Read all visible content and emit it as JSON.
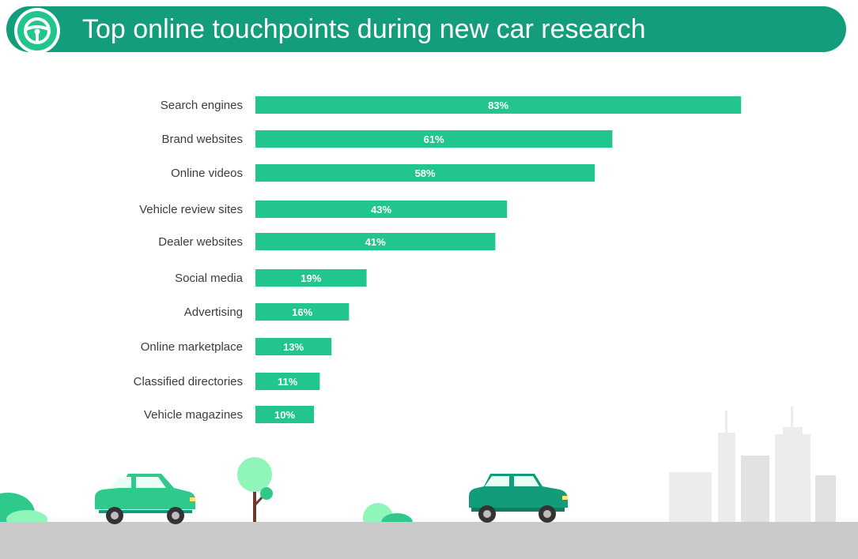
{
  "header": {
    "title": "Top online touchpoints during new car research",
    "icon": "steering-wheel-icon"
  },
  "colors": {
    "banner": "#149d7c",
    "bar": "#22c58e",
    "road": "#cacaca",
    "car_light": "#2fca8b",
    "car_dark": "#139c7b",
    "building": "#ececec",
    "tree": "#8ff5b9"
  },
  "chart_data": {
    "type": "bar",
    "orientation": "horizontal",
    "categories": [
      "Search engines",
      "Brand websites",
      "Online videos",
      "Vehicle review sites",
      "Dealer websites",
      "Social media",
      "Advertising",
      "Online marketplace",
      "Classified directories",
      "Vehicle magazines"
    ],
    "values": [
      83,
      61,
      58,
      43,
      41,
      19,
      16,
      13,
      11,
      10
    ],
    "value_labels": [
      "83%",
      "61%",
      "58%",
      "43%",
      "41%",
      "19%",
      "16%",
      "13%",
      "11%",
      "10%"
    ],
    "unit": "%",
    "xlim": [
      0,
      100
    ],
    "grid": false,
    "legend": "none"
  },
  "illustration": {
    "scene": [
      "car-left",
      "car-right",
      "tree",
      "bushes",
      "city-buildings",
      "road"
    ]
  }
}
